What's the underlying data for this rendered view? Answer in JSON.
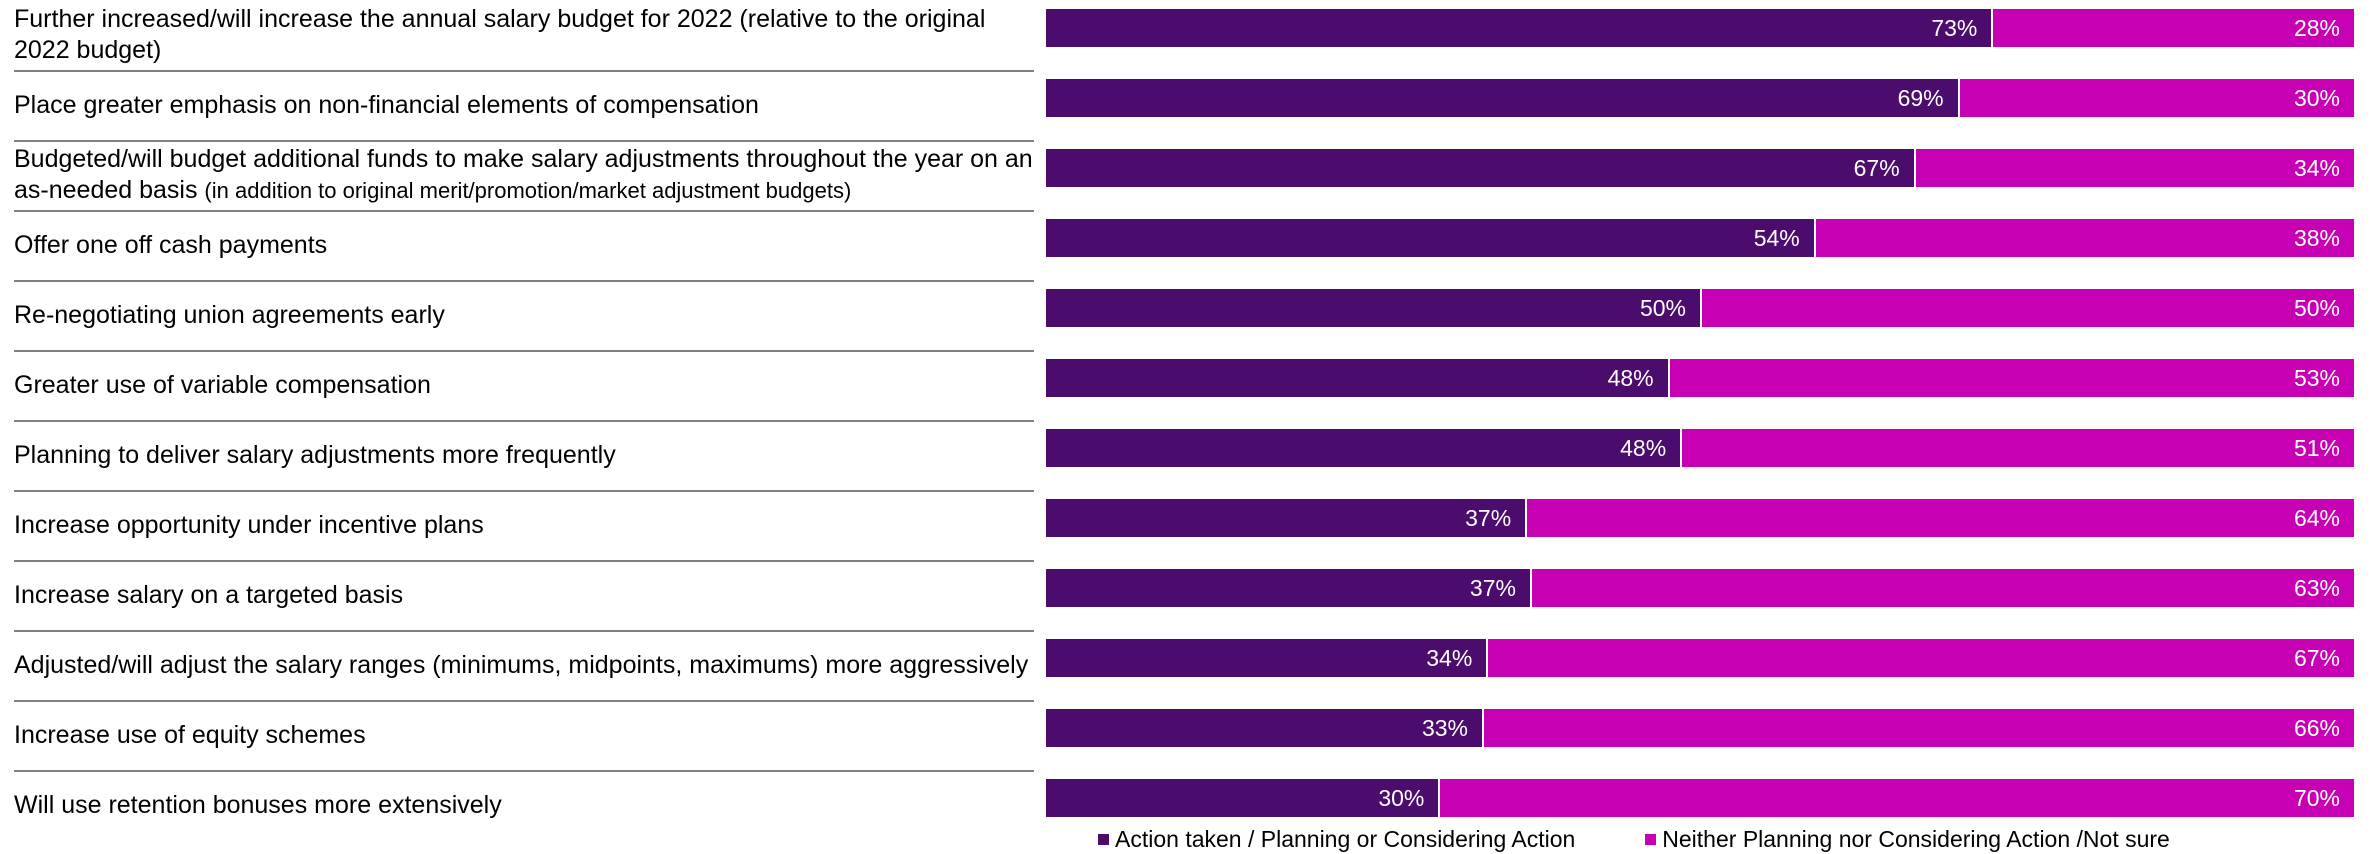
{
  "chart_data": {
    "type": "bar",
    "orientation": "horizontal",
    "stacked": true,
    "categories": [
      {
        "main": "Further increased/will increase the annual salary budget for 2022 (relative to the original 2022 budget)",
        "sub": ""
      },
      {
        "main": "Place greater emphasis on non-financial elements of compensation",
        "sub": ""
      },
      {
        "main": "Budgeted/will budget additional funds to make salary adjustments throughout the year on an as-needed basis",
        "sub": "(in addition to original merit/promotion/market adjustment budgets)"
      },
      {
        "main": "Offer one off cash payments",
        "sub": ""
      },
      {
        "main": "Re-negotiating union agreements early",
        "sub": ""
      },
      {
        "main": "Greater use of variable compensation",
        "sub": ""
      },
      {
        "main": "Planning to deliver salary adjustments more frequently",
        "sub": ""
      },
      {
        "main": "Increase opportunity under incentive plans",
        "sub": ""
      },
      {
        "main": "Increase salary on a targeted basis",
        "sub": ""
      },
      {
        "main": "Adjusted/will adjust the salary ranges (minimums, midpoints, maximums) more aggressively",
        "sub": ""
      },
      {
        "main": "Increase use of equity schemes",
        "sub": ""
      },
      {
        "main": "Will use retention bonuses more extensively",
        "sub": ""
      }
    ],
    "series": [
      {
        "name": "Action taken / Planning or Considering Action",
        "color": "#4b0c6e",
        "values": [
          73,
          69,
          67,
          54,
          50,
          48,
          48,
          37,
          37,
          34,
          33,
          30
        ],
        "labels": [
          "73%",
          "69%",
          "67%",
          "54%",
          "50%",
          "48%",
          "48%",
          "37%",
          "37%",
          "34%",
          "33%",
          "30%"
        ]
      },
      {
        "name": "Neither Planning nor Considering Action /Not sure",
        "color": "#c800b4",
        "values": [
          28,
          30,
          34,
          38,
          50,
          53,
          51,
          64,
          63,
          67,
          66,
          70
        ],
        "labels": [
          "28%",
          "30%",
          "34%",
          "38%",
          "50%",
          "53%",
          "51%",
          "64%",
          "63%",
          "67%",
          "66%",
          "70%"
        ]
      }
    ],
    "unit": "%",
    "xlim": [
      0,
      100
    ],
    "legend_position": "bottom-center",
    "grid": false
  }
}
